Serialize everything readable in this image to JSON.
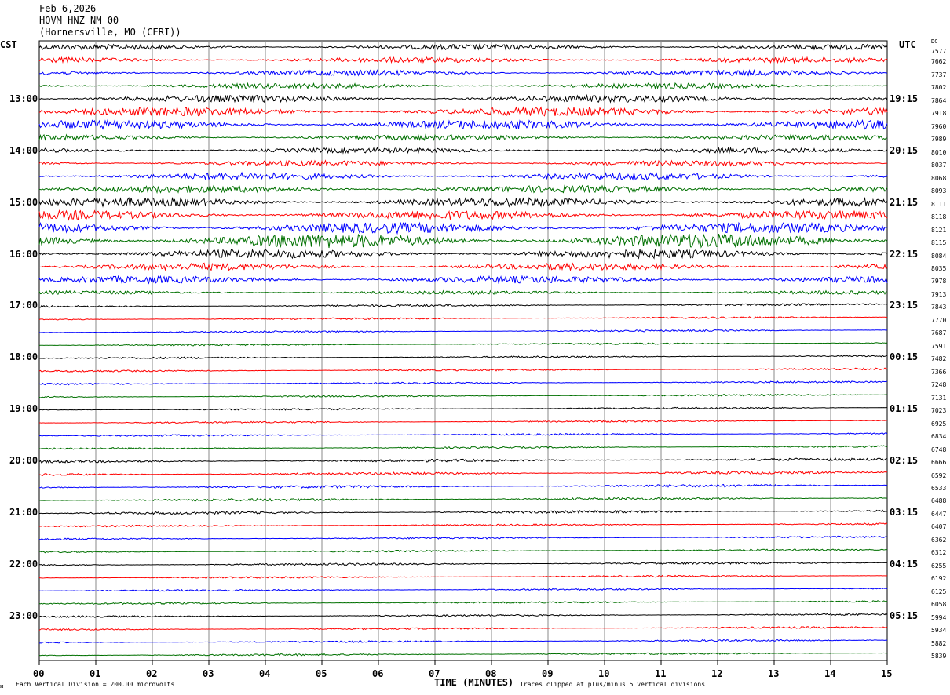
{
  "header": {
    "date": "Feb 6,2026",
    "station": "HOVM HNZ NM 00",
    "location": "(Hornersville, MO (CERI))"
  },
  "chart_data": {
    "type": "line",
    "title": "Feb 6,2026",
    "left_axis_label": "CST",
    "right_axis_label": "UTC",
    "dc_label": "DC",
    "xlabel": "TIME (MINUTES)",
    "xlim": [
      0,
      15
    ],
    "x_ticks": [
      "00",
      "01",
      "02",
      "03",
      "04",
      "05",
      "06",
      "07",
      "08",
      "09",
      "10",
      "11",
      "12",
      "13",
      "14",
      "15"
    ],
    "grid": true,
    "trace_colors": [
      "#000000",
      "#ff0000",
      "#0000ff",
      "#007000"
    ],
    "left_hour_labels": [
      "13:00",
      "14:00",
      "15:00",
      "16:00",
      "17:00",
      "18:00",
      "19:00",
      "20:00",
      "21:00",
      "22:00",
      "23:00"
    ],
    "right_hour_labels": [
      "19:15",
      "20:15",
      "21:15",
      "22:15",
      "23:15",
      "00:15",
      "01:15",
      "02:15",
      "03:15",
      "04:15",
      "05:15"
    ],
    "dc_values": [
      "7577",
      "7662",
      "7737",
      "7802",
      "7864",
      "7918",
      "7960",
      "7989",
      "8010",
      "8037",
      "8068",
      "8093",
      "8111",
      "8118",
      "8121",
      "8115",
      "8084",
      "8035",
      "7978",
      "7913",
      "7843",
      "7770",
      "7687",
      "7591",
      "7482",
      "7366",
      "7248",
      "7131",
      "7023",
      "6925",
      "6834",
      "6748",
      "6666",
      "6592",
      "6533",
      "6488",
      "6447",
      "6407",
      "6362",
      "6312",
      "6255",
      "6192",
      "6125",
      "6058",
      "5994",
      "5934",
      "5882",
      "5839"
    ],
    "vertical_division": "Each Vertical Division =  200.00 microvolts",
    "clip_note": "Traces clipped at plus/minus 5 vertical divisions"
  }
}
